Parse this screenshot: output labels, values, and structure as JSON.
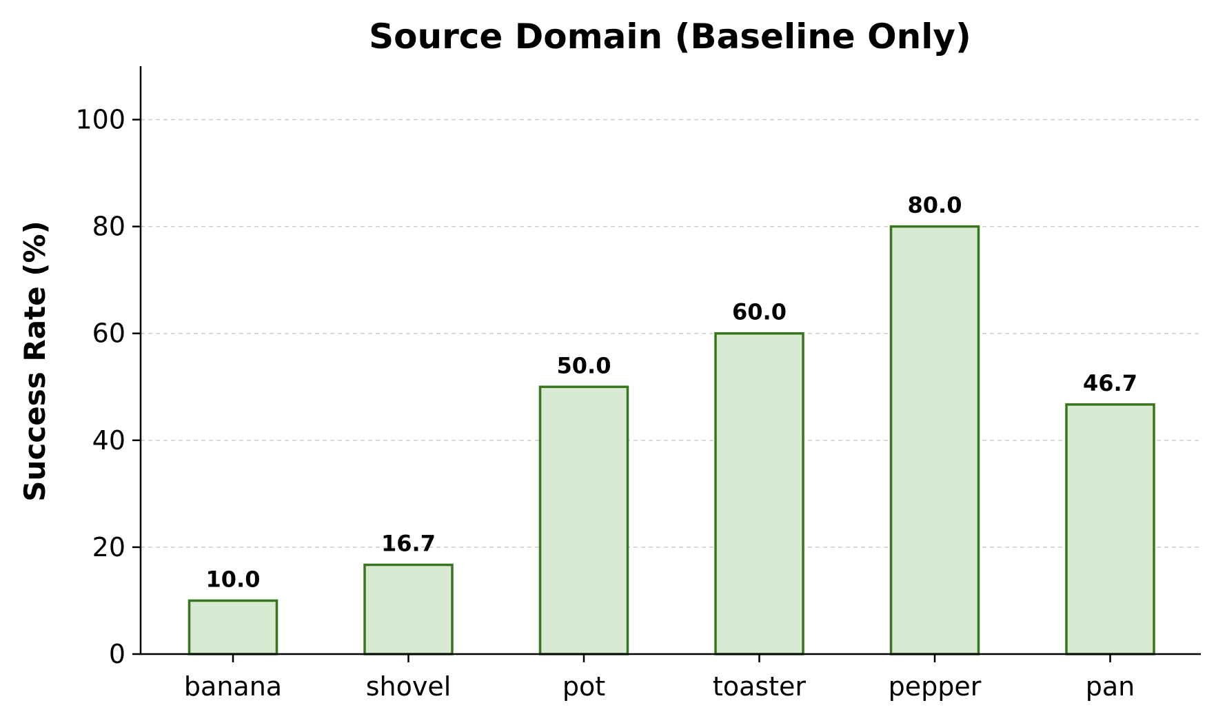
{
  "chart_data": {
    "type": "bar",
    "title": "Source Domain (Baseline Only)",
    "xlabel": "",
    "ylabel": "Success Rate (%)",
    "categories": [
      "banana",
      "shovel",
      "pot",
      "toaster",
      "pepper",
      "pan"
    ],
    "values": [
      10.0,
      16.7,
      50.0,
      60.0,
      80.0,
      46.7
    ],
    "value_labels": [
      "10.0",
      "16.7",
      "50.0",
      "60.0",
      "80.0",
      "46.7"
    ],
    "ylim": [
      0,
      110
    ],
    "yticks": [
      0,
      20,
      40,
      60,
      80,
      100
    ],
    "grid": "y-dashed",
    "legend": "none",
    "colors": {
      "bar_fill": "#d9ead3",
      "bar_edge": "#38761d",
      "grid": "#cccccc",
      "axis": "#000000"
    }
  }
}
